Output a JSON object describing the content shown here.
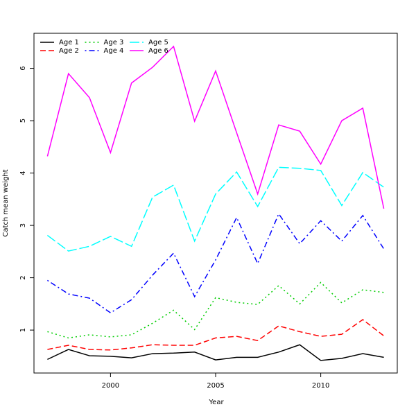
{
  "chart_data": {
    "type": "line",
    "xlabel": "Year",
    "ylabel": "Catch mean weight",
    "x": [
      1997,
      1998,
      1999,
      2000,
      2001,
      2002,
      2003,
      2004,
      2005,
      2006,
      2007,
      2008,
      2009,
      2010,
      2011,
      2012,
      2013
    ],
    "xlim": [
      1996.36,
      2013.64
    ],
    "xticks": [
      2000,
      2005,
      2010
    ],
    "ylim": [
      0.18,
      6.67
    ],
    "yticks": [
      1,
      2,
      3,
      4,
      5,
      6
    ],
    "grid": false,
    "legend": "top-left",
    "series": [
      {
        "name": "Age 1",
        "color": "#000000",
        "linestyle": "solid",
        "values": [
          0.44,
          0.63,
          0.51,
          0.5,
          0.47,
          0.55,
          0.56,
          0.58,
          0.43,
          0.48,
          0.48,
          0.58,
          0.72,
          0.42,
          0.46,
          0.55,
          0.48
        ]
      },
      {
        "name": "Age 2",
        "color": "#ff0000",
        "linestyle": "dashed",
        "values": [
          0.63,
          0.71,
          0.63,
          0.62,
          0.66,
          0.72,
          0.71,
          0.71,
          0.85,
          0.88,
          0.8,
          1.08,
          0.97,
          0.88,
          0.92,
          1.2,
          0.89
        ]
      },
      {
        "name": "Age 3",
        "color": "#00cd00",
        "linestyle": "dotted",
        "values": [
          0.97,
          0.85,
          0.91,
          0.87,
          0.91,
          1.13,
          1.38,
          1.01,
          1.62,
          1.53,
          1.49,
          1.85,
          1.5,
          1.91,
          1.52,
          1.77,
          1.72
        ]
      },
      {
        "name": "Age 4",
        "color": "#0000ff",
        "linestyle": "dotdash",
        "values": [
          1.95,
          1.69,
          1.61,
          1.33,
          1.58,
          2.05,
          2.47,
          1.64,
          2.34,
          3.15,
          2.27,
          3.22,
          2.65,
          3.09,
          2.7,
          3.19,
          2.55
        ]
      },
      {
        "name": "Age 5",
        "color": "#00ffff",
        "linestyle": "longdash",
        "values": [
          2.81,
          2.51,
          2.6,
          2.79,
          2.6,
          3.54,
          3.77,
          2.7,
          3.6,
          4.02,
          3.36,
          4.11,
          4.09,
          4.05,
          3.38,
          4.01,
          3.73
        ]
      },
      {
        "name": "Age 6",
        "color": "#ff00ff",
        "linestyle": "solid",
        "values": [
          4.32,
          5.9,
          5.44,
          4.39,
          5.72,
          6.02,
          6.42,
          4.99,
          5.95,
          4.77,
          3.6,
          4.92,
          4.8,
          4.17,
          5.0,
          5.24,
          3.32
        ]
      }
    ]
  }
}
